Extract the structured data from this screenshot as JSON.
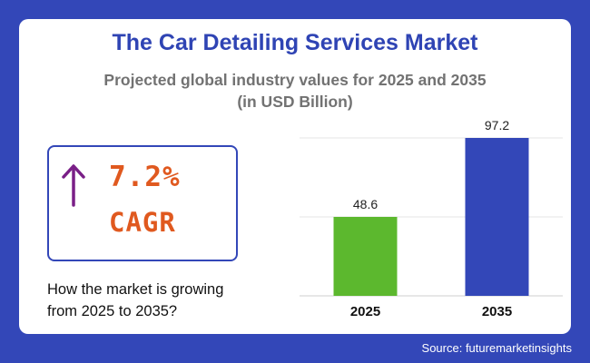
{
  "header": {
    "title": "The Car Detailing Services Market",
    "subtitle_line1": "Projected global industry values for 2025 and 2035",
    "subtitle_line2": "(in USD Billion)"
  },
  "cagr": {
    "value": "7.2%",
    "label": "CAGR",
    "icon": "arrow-up-icon",
    "arrow_color": "#7a1f87",
    "text_color": "#e0591f"
  },
  "growth_note": {
    "line1": "How the market is growing",
    "line2": "from 2025 to 2035?"
  },
  "source": "Source: futuremarketinsights",
  "colors": {
    "background": "#3347b8",
    "title": "#2f44b4",
    "bar_2025": "#5cb82e",
    "bar_2035": "#3347b8"
  },
  "chart_data": {
    "type": "bar",
    "categories": [
      "2025",
      "2035"
    ],
    "values": [
      48.6,
      97.2
    ],
    "data_labels": [
      "48.6",
      "97.2"
    ],
    "bar_colors": [
      "#5cb82e",
      "#3347b8"
    ],
    "title": "The Car Detailing Services Market",
    "xlabel": "",
    "ylabel": "",
    "ylim": [
      0,
      97.2
    ],
    "grid": true
  }
}
